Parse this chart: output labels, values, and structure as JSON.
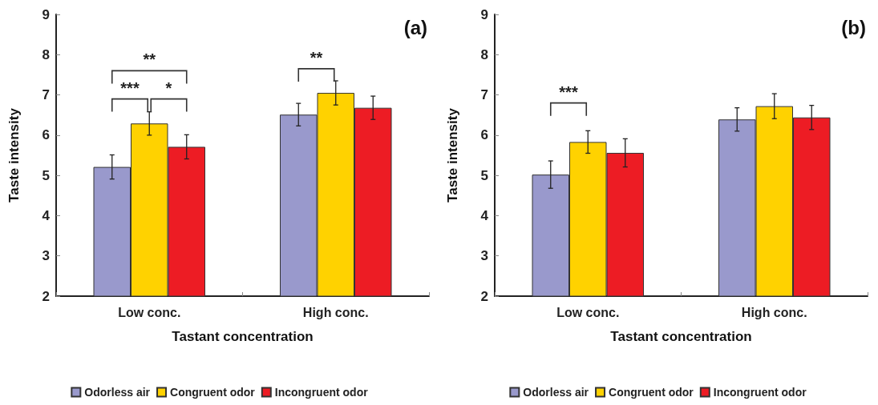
{
  "chart_data": [
    {
      "type": "bar",
      "xlabel": "Tastant concentration",
      "ylabel": "Taste intensity",
      "categories": [
        "Low conc.",
        "High conc."
      ],
      "ylim": [
        2,
        9
      ],
      "yticks": [
        2,
        3,
        4,
        5,
        6,
        7,
        8,
        9
      ],
      "grid": false,
      "legend": "bottom",
      "series": [
        {
          "name": "Odorless air",
          "color": "#9999cc",
          "values": [
            5.21,
            6.51
          ],
          "errors": [
            0.3,
            0.28
          ]
        },
        {
          "name": "Congruent odor",
          "color": "#ffd200",
          "values": [
            6.29,
            7.05
          ],
          "errors": [
            0.29,
            0.3
          ]
        },
        {
          "name": "Incongruent odor",
          "color": "#ed1c24",
          "values": [
            5.71,
            6.68
          ],
          "errors": [
            0.3,
            0.29
          ]
        }
      ],
      "annotations": [
        "(a)",
        "**",
        "***",
        "*",
        "**"
      ]
    },
    {
      "type": "bar",
      "xlabel": "Tastant concentration",
      "ylabel": "Taste intensity",
      "categories": [
        "Low conc.",
        "High conc."
      ],
      "ylim": [
        2,
        9
      ],
      "yticks": [
        2,
        3,
        4,
        5,
        6,
        7,
        8,
        9
      ],
      "grid": false,
      "legend": "bottom",
      "series": [
        {
          "name": "Odorless air",
          "color": "#9999cc",
          "values": [
            5.02,
            6.39
          ],
          "errors": [
            0.34,
            0.29
          ]
        },
        {
          "name": "Congruent odor",
          "color": "#ffd200",
          "values": [
            5.83,
            6.72
          ],
          "errors": [
            0.28,
            0.31
          ]
        },
        {
          "name": "Incongruent odor",
          "color": "#ed1c24",
          "values": [
            5.56,
            6.44
          ],
          "errors": [
            0.35,
            0.3
          ]
        }
      ],
      "annotations": [
        "(b)",
        "***"
      ]
    }
  ]
}
